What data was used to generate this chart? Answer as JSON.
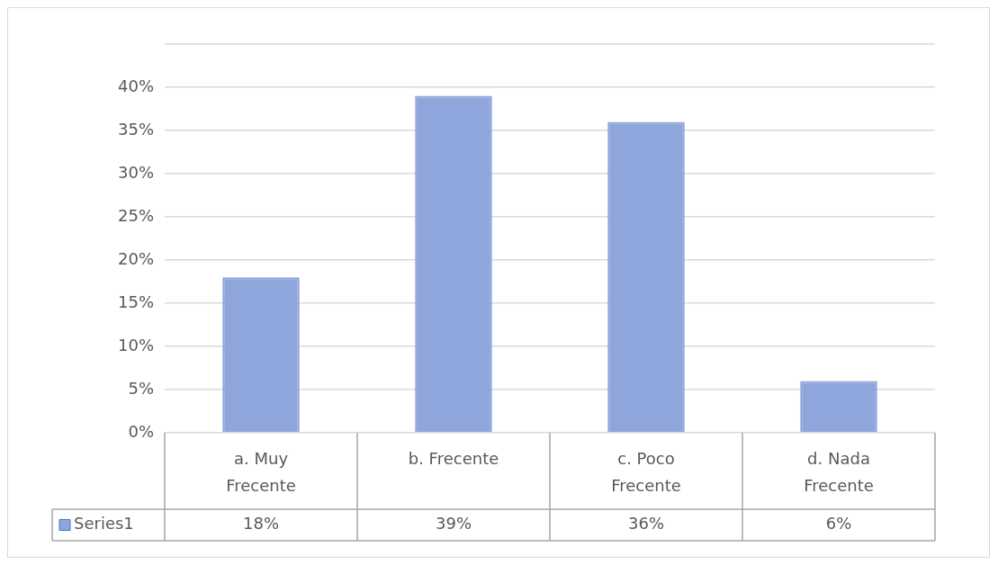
{
  "chart_data": {
    "type": "bar",
    "categories": [
      "a. Muy Frecente",
      "b. Frecente",
      "c. Poco Frecente",
      "d. Nada Frecente"
    ],
    "series": [
      {
        "name": "Series1",
        "color": "#8fa6dc",
        "values": [
          18,
          39,
          36,
          6
        ],
        "value_labels": [
          "18%",
          "39%",
          "36%",
          "6%"
        ]
      }
    ],
    "ylim": [
      0,
      45
    ],
    "yticks": [
      {
        "value": 0,
        "label": "0%"
      },
      {
        "value": 5,
        "label": "5%"
      },
      {
        "value": 10,
        "label": "10%"
      },
      {
        "value": 15,
        "label": "15%"
      },
      {
        "value": 20,
        "label": "20%"
      },
      {
        "value": 25,
        "label": "25%"
      },
      {
        "value": 30,
        "label": "30%"
      },
      {
        "value": 35,
        "label": "35%"
      },
      {
        "value": 40,
        "label": "40%"
      },
      {
        "value": 45,
        "label": null
      }
    ],
    "grid": "y",
    "legend": "bottom"
  }
}
